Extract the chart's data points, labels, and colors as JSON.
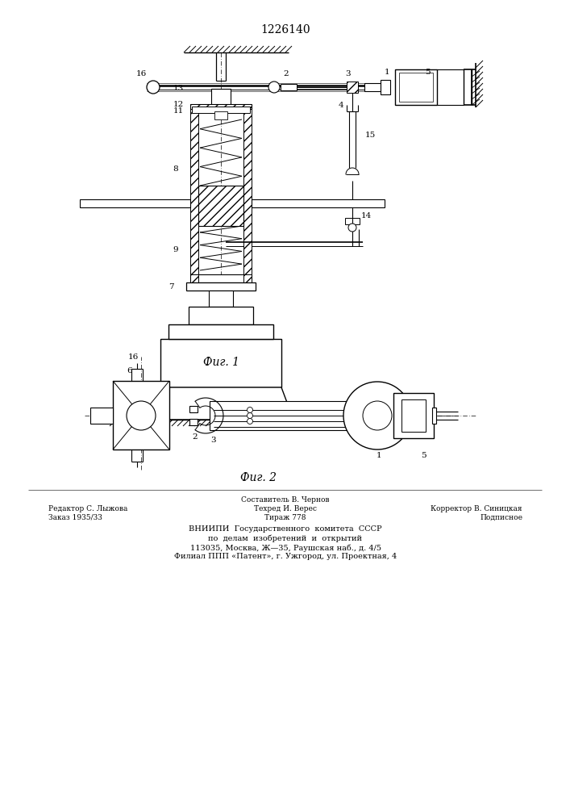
{
  "patent_number": "1226140",
  "fig1_caption": "Фиг. 1",
  "fig2_caption": "Фиг. 2",
  "bg_color": "#ffffff",
  "footer_line0_center": "Составитель В. Чернов",
  "footer_line1_left": "Редактор С. Лыжова",
  "footer_line1_center": "Техред И. Верес",
  "footer_line1_right": "Корректор В. Синицкая",
  "footer_line2_left": "Заказ 1935/33",
  "footer_line2_center": "Тираж 778",
  "footer_line2_right": "Подписное",
  "footer_vniipi1": "ВНИИПИ  Государственного  комитета  СССР",
  "footer_vniipi2": "по  делам  изобретений  и  открытий",
  "footer_vniipi3": "113035, Москва, Ж—35, Раушская наб., д. 4/5",
  "footer_vniipi4": "Филиал ППП «Патент», г. Ужгород, ул. Проектная, 4"
}
